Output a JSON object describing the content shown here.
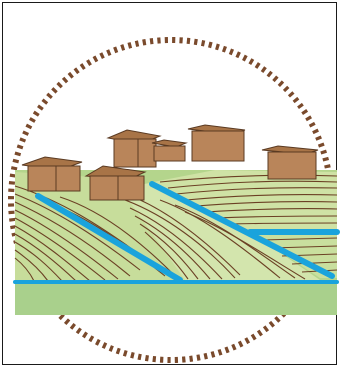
{
  "illustration": {
    "subject": "terraced-fields-with-irrigation-and-houses",
    "icon": "rural-landscape-icon",
    "colors": {
      "sky": "#ffffff",
      "border_dots": "#7a4a2c",
      "field_light": "#cfe3a8",
      "field_mid": "#b9d98a",
      "field_base": "#a8d08b",
      "furrow": "#6b4024",
      "water": "#1aa3dc",
      "house_wall": "#b9855a",
      "house_roof": "#a87447",
      "house_outline": "#5a3a22"
    }
  }
}
